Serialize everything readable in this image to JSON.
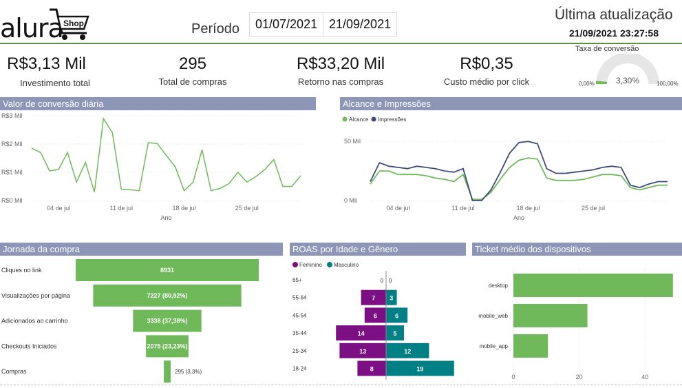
{
  "header": {
    "logo_text": "alura",
    "logo_shop": "Shop",
    "period_label": "Período",
    "date_start": "01/07/2021",
    "date_end": "21/09/2021",
    "last_update_label": "Última atualização",
    "last_update_value": "21/09/2021 23:27:58"
  },
  "kpis": [
    {
      "value": "R$3,13 Mil",
      "label": "Investimento total"
    },
    {
      "value": "295",
      "label": "Total de compras"
    },
    {
      "value": "R$33,20 Mil",
      "label": "Retorno nas compras"
    },
    {
      "value": "R$0,35",
      "label": "Custo médio por click"
    }
  ],
  "gauge": {
    "title": "Taxa de conversão",
    "value": "3,30%",
    "fraction": 0.033,
    "min": "0,00%",
    "max": "100,00%"
  },
  "colors": {
    "green": "#6fb95a",
    "navy": "#3e4a78",
    "purple": "#7b0f83",
    "teal": "#007f84",
    "panel": "#8e96b8"
  },
  "chart_data": [
    {
      "type": "line",
      "title": "Valor de conversão diária",
      "xlabel": "Ano",
      "y_ticks": [
        "R$3 Mil",
        "R$2 Mil",
        "R$1 Mil",
        "R$0 Mil"
      ],
      "ylim": [
        0,
        3000
      ],
      "x_ticks": [
        "04 de jul",
        "11 de jul",
        "18 de jul",
        "25 de jul"
      ],
      "x_tick_days": [
        4,
        11,
        18,
        25
      ],
      "xlim": [
        1,
        31
      ],
      "series": [
        {
          "values": [
            [
              1,
              1850
            ],
            [
              2,
              1700
            ],
            [
              3,
              1050
            ],
            [
              4,
              1100
            ],
            [
              5,
              1700
            ],
            [
              6,
              650
            ],
            [
              7,
              1350
            ],
            [
              8,
              300
            ],
            [
              9,
              2900
            ],
            [
              10,
              2400
            ],
            [
              11,
              400
            ],
            [
              12,
              380
            ],
            [
              13,
              350
            ],
            [
              14,
              2050
            ],
            [
              15,
              2020
            ],
            [
              16,
              1600
            ],
            [
              17,
              1200
            ],
            [
              18,
              350
            ],
            [
              19,
              650
            ],
            [
              20,
              1800
            ],
            [
              21,
              350
            ],
            [
              22,
              430
            ],
            [
              23,
              600
            ],
            [
              24,
              1000
            ],
            [
              25,
              650
            ],
            [
              26,
              850
            ],
            [
              27,
              1100
            ],
            [
              28,
              1450
            ],
            [
              29,
              500
            ],
            [
              30,
              500
            ],
            [
              31,
              880
            ]
          ]
        }
      ]
    },
    {
      "type": "line",
      "title": "Alcance e Impressões",
      "xlabel": "Ano",
      "y_ticks": [
        "50 Mil",
        "0 Mil"
      ],
      "ylim": [
        0,
        60000
      ],
      "x_ticks": [
        "04 de jul",
        "11 de jul",
        "18 de jul",
        "25 de jul"
      ],
      "x_tick_days": [
        4,
        11,
        18,
        25
      ],
      "xlim": [
        1,
        33
      ],
      "series": [
        {
          "name": "Alcance",
          "values": [
            [
              1,
              14000
            ],
            [
              2,
              25000
            ],
            [
              3,
              25000
            ],
            [
              4,
              22000
            ],
            [
              5,
              22000
            ],
            [
              6,
              22000
            ],
            [
              7,
              21000
            ],
            [
              8,
              19000
            ],
            [
              9,
              18000
            ],
            [
              10,
              16000
            ],
            [
              11,
              22000
            ],
            [
              12,
              1000
            ],
            [
              13,
              1000
            ],
            [
              14,
              7000
            ],
            [
              15,
              18000
            ],
            [
              16,
              28000
            ],
            [
              17,
              34000
            ],
            [
              18,
              36000
            ],
            [
              19,
              35000
            ],
            [
              20,
              19000
            ],
            [
              21,
              17000
            ],
            [
              22,
              17000
            ],
            [
              23,
              17000
            ],
            [
              24,
              18000
            ],
            [
              25,
              20000
            ],
            [
              26,
              22000
            ],
            [
              27,
              22000
            ],
            [
              28,
              21000
            ],
            [
              29,
              11000
            ],
            [
              30,
              9000
            ],
            [
              31,
              11000
            ],
            [
              32,
              13000
            ],
            [
              33,
              13000
            ]
          ]
        },
        {
          "name": "Impressões",
          "values": [
            [
              1,
              16000
            ],
            [
              2,
              32000
            ],
            [
              3,
              29000
            ],
            [
              4,
              28000
            ],
            [
              5,
              27000
            ],
            [
              6,
              29000
            ],
            [
              7,
              28000
            ],
            [
              8,
              27000
            ],
            [
              9,
              25000
            ],
            [
              10,
              24000
            ],
            [
              11,
              27000
            ],
            [
              12,
              0
            ],
            [
              13,
              0
            ],
            [
              14,
              9000
            ],
            [
              15,
              24000
            ],
            [
              16,
              40000
            ],
            [
              17,
              49000
            ],
            [
              18,
              50000
            ],
            [
              19,
              48000
            ],
            [
              20,
              27000
            ],
            [
              21,
              23000
            ],
            [
              22,
              23000
            ],
            [
              23,
              24000
            ],
            [
              24,
              25000
            ],
            [
              25,
              26000
            ],
            [
              26,
              28000
            ],
            [
              27,
              29000
            ],
            [
              28,
              28000
            ],
            [
              29,
              13000
            ],
            [
              30,
              11000
            ],
            [
              31,
              14000
            ],
            [
              32,
              16000
            ],
            [
              33,
              16000
            ]
          ]
        }
      ]
    },
    {
      "type": "bar",
      "title": "Jornada da compra",
      "categories": [
        "Cliques no link",
        "Visualizações por página",
        "Adicionados ao carrinho",
        "Checkouts Iniciados",
        "Compras"
      ],
      "values": [
        8931,
        7227,
        3338,
        2075,
        295
      ],
      "data_labels": [
        "8931",
        "7227 (80,92%)",
        "3338 (37,38%)",
        "2075 (23,23%)",
        "295 (3,3%)"
      ]
    },
    {
      "type": "bar",
      "title": "ROAS por Idade e Gênero",
      "categories": [
        "65+",
        "55-64",
        "45-54",
        "35-44",
        "25-34",
        "18-24"
      ],
      "series": [
        {
          "name": "Feminino",
          "values": [
            0,
            7,
            6,
            14,
            13,
            8
          ]
        },
        {
          "name": "Masculino",
          "values": [
            0,
            3,
            6,
            5,
            12,
            19
          ]
        }
      ]
    },
    {
      "type": "bar",
      "title": "Ticket médio dos dispositivos",
      "categories": [
        "desktop",
        "mobile_web",
        "mobile_app"
      ],
      "values": [
        48.5,
        22.5,
        10.5
      ],
      "x_ticks": [
        0,
        20,
        40
      ],
      "xlim": [
        0,
        50
      ]
    }
  ]
}
